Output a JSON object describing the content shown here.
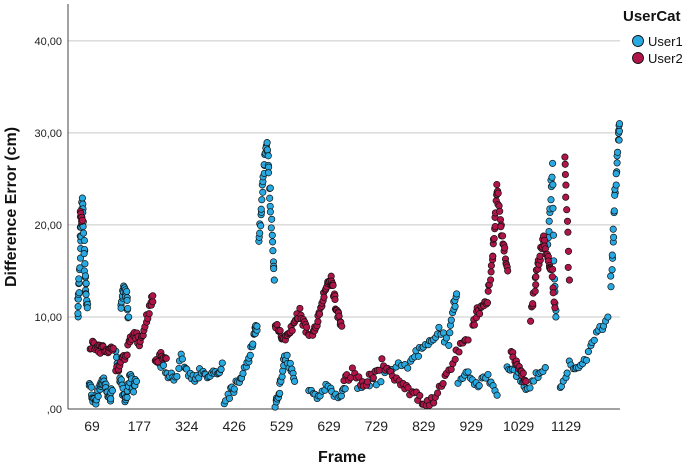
{
  "chart_data": {
    "type": "scatter",
    "xlabel": "Frame",
    "ylabel": "Difference Error (cm)",
    "x_ticks": [
      "69",
      "177",
      "324",
      "426",
      "529",
      "629",
      "729",
      "829",
      "929",
      "1029",
      "1129"
    ],
    "y_ticks": [
      {
        "value": 0,
        "label": ",00"
      },
      {
        "value": 10,
        "label": "10,00"
      },
      {
        "value": 20,
        "label": "20,00"
      },
      {
        "value": 30,
        "label": "30,00"
      },
      {
        "value": 40,
        "label": "40,00"
      }
    ],
    "xlim": [
      40,
      1185
    ],
    "ylim": [
      0,
      44
    ],
    "grid": "horizontal",
    "legend": {
      "title": "UserCat",
      "placement": "top-right"
    },
    "series": [
      {
        "name": "User1",
        "color": "#29a9e1",
        "clusters": [
          [
            [
              60,
              10
            ],
            [
              62,
              12.5
            ],
            [
              64,
              15
            ],
            [
              66,
              18.5
            ],
            [
              68,
              21
            ],
            [
              70,
              22.5
            ],
            [
              72,
              20
            ],
            [
              74,
              17
            ],
            [
              76,
              14
            ],
            [
              78,
              12
            ],
            [
              80,
              11
            ]
          ],
          [
            [
              84,
              3
            ],
            [
              90,
              1.5
            ],
            [
              96,
              0.5
            ],
            [
              102,
              1.5
            ],
            [
              108,
              2.5
            ],
            [
              114,
              3
            ],
            [
              120,
              2
            ],
            [
              126,
              1
            ],
            [
              132,
              2
            ]
          ],
          [
            [
              150,
              11
            ],
            [
              154,
              12.5
            ],
            [
              158,
              13.5
            ],
            [
              162,
              12
            ],
            [
              166,
              10
            ]
          ],
          [
            [
              140,
              6
            ],
            [
              146,
              4
            ],
            [
              152,
              2.5
            ],
            [
              158,
              1
            ],
            [
              164,
              2
            ],
            [
              170,
              3.5
            ],
            [
              176,
              2
            ],
            [
              182,
              3
            ]
          ],
          [
            [
              230,
              5
            ],
            [
              245,
              4
            ],
            [
              260,
              3
            ],
            [
              275,
              5.5
            ],
            [
              290,
              4
            ],
            [
              305,
              3
            ],
            [
              320,
              4.5
            ],
            [
              335,
              3.5
            ],
            [
              350,
              4
            ],
            [
              360,
              5
            ]
          ],
          [
            [
              365,
              1
            ],
            [
              380,
              2
            ],
            [
              395,
              3
            ],
            [
              410,
              5
            ],
            [
              420,
              6.5
            ],
            [
              428,
              8.5
            ],
            [
              432,
              9
            ]
          ],
          [
            [
              435,
              18
            ],
            [
              440,
              21
            ],
            [
              444,
              24
            ],
            [
              448,
              27
            ],
            [
              452,
              29
            ],
            [
              456,
              26
            ],
            [
              460,
              22
            ],
            [
              464,
              18
            ],
            [
              468,
              14
            ]
          ],
          [
            [
              470,
              0.5
            ],
            [
              476,
              1.5
            ],
            [
              482,
              3
            ],
            [
              490,
              6
            ],
            [
              500,
              4.5
            ],
            [
              510,
              3
            ]
          ],
          [
            [
              540,
              2
            ],
            [
              560,
              1.5
            ],
            [
              580,
              2.5
            ],
            [
              600,
              1
            ],
            [
              615,
              2.2
            ]
          ],
          [
            [
              640,
              2
            ],
            [
              680,
              3
            ],
            [
              720,
              4.5
            ],
            [
              750,
              5
            ],
            [
              770,
              6.5
            ],
            [
              790,
              7
            ],
            [
              810,
              8.5
            ],
            [
              830,
              7
            ],
            [
              840,
              11
            ],
            [
              846,
              12.5
            ]
          ],
          [
            [
              850,
              3
            ],
            [
              870,
              4
            ],
            [
              890,
              2.5
            ],
            [
              910,
              3.5
            ],
            [
              930,
              1.5
            ]
          ],
          [
            [
              950,
              5
            ],
            [
              970,
              4
            ],
            [
              990,
              2
            ],
            [
              1010,
              3.5
            ],
            [
              1030,
              4.5
            ]
          ],
          [
            [
              1036,
              18
            ],
            [
              1040,
              22
            ],
            [
              1044,
              26.5
            ],
            [
              1048,
              14
            ],
            [
              1052,
              10
            ]
          ],
          [
            [
              1060,
              2
            ],
            [
              1080,
              5
            ],
            [
              1100,
              4
            ],
            [
              1120,
              6
            ],
            [
              1140,
              8.5
            ],
            [
              1160,
              10
            ]
          ],
          [
            [
              1166,
              13
            ],
            [
              1170,
              18
            ],
            [
              1174,
              23
            ],
            [
              1178,
              26
            ],
            [
              1182,
              29.5
            ],
            [
              1184,
              31
            ]
          ]
        ]
      },
      {
        "name": "User2",
        "color": "#b0154a",
        "clusters": [
          [
            [
              66,
              21
            ],
            [
              70,
              20.5
            ]
          ],
          [
            [
              86,
              7
            ],
            [
              96,
              6.8
            ],
            [
              106,
              6.5
            ],
            [
              116,
              6.7
            ],
            [
              126,
              6.4
            ],
            [
              134,
              6.6
            ]
          ],
          [
            [
              140,
              4
            ],
            [
              150,
              5
            ],
            [
              160,
              6
            ],
            [
              170,
              7.5
            ],
            [
              180,
              8
            ],
            [
              190,
              7
            ],
            [
              200,
              9
            ],
            [
              210,
              11
            ],
            [
              216,
              12.3
            ]
          ],
          [
            [
              220,
              5
            ],
            [
              232,
              6
            ],
            [
              244,
              5.5
            ]
          ],
          [
            [
              470,
              9
            ],
            [
              480,
              8.5
            ],
            [
              490,
              7.5
            ],
            [
              500,
              8
            ],
            [
              510,
              9.5
            ],
            [
              520,
              10.5
            ],
            [
              530,
              9
            ],
            [
              540,
              8
            ]
          ],
          [
            [
              548,
              8
            ],
            [
              556,
              9.5
            ],
            [
              564,
              11
            ],
            [
              572,
              12.5
            ],
            [
              580,
              13.5
            ],
            [
              586,
              14
            ],
            [
              590,
              13
            ],
            [
              596,
              11
            ],
            [
              602,
              10
            ],
            [
              608,
              9
            ]
          ],
          [
            [
              612,
              3
            ],
            [
              630,
              4
            ],
            [
              650,
              2.5
            ],
            [
              670,
              3.5
            ],
            [
              690,
              5
            ],
            [
              710,
              4
            ],
            [
              730,
              3
            ],
            [
              750,
              2
            ],
            [
              770,
              1
            ],
            [
              790,
              0.5
            ],
            [
              810,
              2
            ],
            [
              830,
              4
            ],
            [
              850,
              6.5
            ],
            [
              870,
              7.5
            ]
          ],
          [
            [
              880,
              9
            ],
            [
              890,
              10.5
            ],
            [
              900,
              11
            ],
            [
              910,
              12
            ],
            [
              918,
              15
            ],
            [
              922,
              17.5
            ],
            [
              926,
              21
            ],
            [
              930,
              24.5
            ],
            [
              934,
              22
            ],
            [
              940,
              19
            ],
            [
              946,
              17
            ],
            [
              952,
              15
            ]
          ],
          [
            [
              960,
              6
            ],
            [
              970,
              5
            ],
            [
              980,
              4
            ],
            [
              990,
              3
            ]
          ],
          [
            [
              1000,
              10
            ],
            [
              1008,
              13
            ],
            [
              1014,
              15
            ],
            [
              1020,
              17
            ],
            [
              1026,
              18.5
            ],
            [
              1032,
              17
            ],
            [
              1038,
              16
            ],
            [
              1044,
              15
            ],
            [
              1050,
              11
            ]
          ],
          [
            [
              1070,
              27.3
            ],
            [
              1074,
              22
            ],
            [
              1080,
              14
            ]
          ]
        ]
      }
    ]
  }
}
